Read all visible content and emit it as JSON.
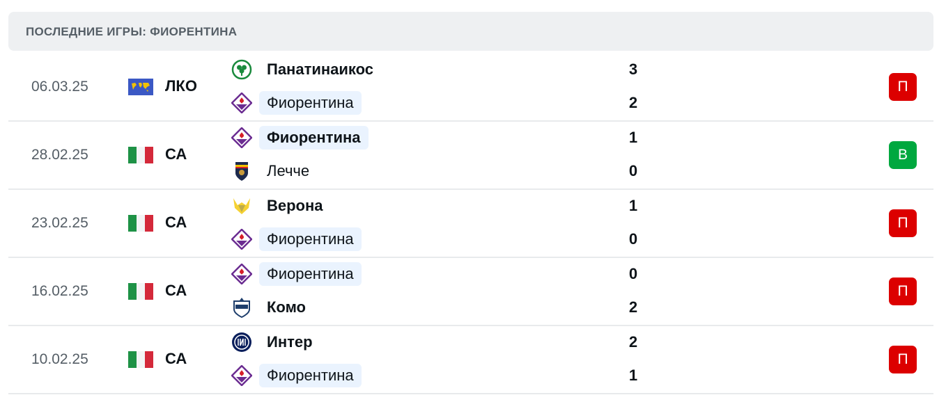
{
  "header": {
    "title": "ПОСЛЕДНИЕ ИГРЫ: ФИОРЕНТИНА"
  },
  "colors": {
    "loss": "#dc0000",
    "win": "#00a83f",
    "highlight": "#eaf3fe"
  },
  "matches": [
    {
      "date": "06.03.25",
      "competition": "ЛКО",
      "flag": "world",
      "home": {
        "name": "Панатинаикос",
        "score": "3",
        "logo": "panathinaikos",
        "winner": true
      },
      "away": {
        "name": "Фиорентина",
        "score": "2",
        "logo": "fiorentina",
        "winner": false
      },
      "result": "П",
      "result_type": "loss"
    },
    {
      "date": "28.02.25",
      "competition": "СА",
      "flag": "italy",
      "home": {
        "name": "Фиорентина",
        "score": "1",
        "logo": "fiorentina",
        "winner": true
      },
      "away": {
        "name": "Лечче",
        "score": "0",
        "logo": "lecce",
        "winner": false
      },
      "result": "В",
      "result_type": "win"
    },
    {
      "date": "23.02.25",
      "competition": "СА",
      "flag": "italy",
      "home": {
        "name": "Верона",
        "score": "1",
        "logo": "verona",
        "winner": true
      },
      "away": {
        "name": "Фиорентина",
        "score": "0",
        "logo": "fiorentina",
        "winner": false
      },
      "result": "П",
      "result_type": "loss"
    },
    {
      "date": "16.02.25",
      "competition": "СА",
      "flag": "italy",
      "home": {
        "name": "Фиорентина",
        "score": "0",
        "logo": "fiorentina",
        "winner": false
      },
      "away": {
        "name": "Комо",
        "score": "2",
        "logo": "como",
        "winner": true
      },
      "result": "П",
      "result_type": "loss"
    },
    {
      "date": "10.02.25",
      "competition": "СА",
      "flag": "italy",
      "home": {
        "name": "Интер",
        "score": "2",
        "logo": "inter",
        "winner": true
      },
      "away": {
        "name": "Фиорентина",
        "score": "1",
        "logo": "fiorentina",
        "winner": false
      },
      "result": "П",
      "result_type": "loss"
    }
  ]
}
